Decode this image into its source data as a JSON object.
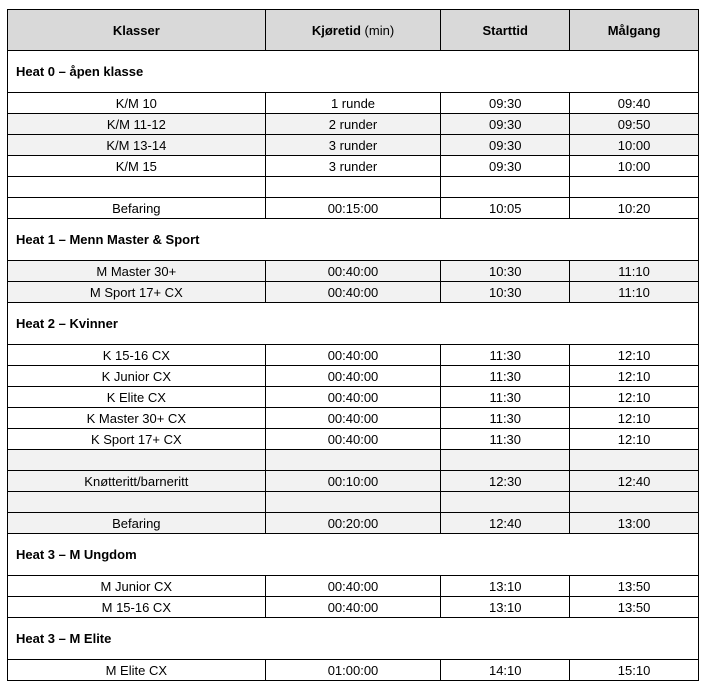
{
  "header": {
    "col1": "Klasser",
    "col2_bold": "Kjøretid",
    "col2_unit": " (min)",
    "col3": "Starttid",
    "col4": "Målgang"
  },
  "colors": {
    "header_bg": "#d9d9d9",
    "shaded_row_bg": "#f2f2f2"
  },
  "sections": [
    {
      "title": "Heat 0 – åpen klasse",
      "rows": [
        {
          "klasse": "K/M 10",
          "kjoretid": "1 runde",
          "start": "09:30",
          "mal": "09:40",
          "shaded": false
        },
        {
          "klasse": "K/M 11-12",
          "kjoretid": "2 runder",
          "start": "09:30",
          "mal": "09:50",
          "shaded": true
        },
        {
          "klasse": "K/M 13-14",
          "kjoretid": "3 runder",
          "start": "09:30",
          "mal": "10:00",
          "shaded": true
        },
        {
          "klasse": "K/M 15",
          "kjoretid": "3 runder",
          "start": "09:30",
          "mal": "10:00",
          "shaded": false
        },
        {
          "klasse": "",
          "kjoretid": "",
          "start": "",
          "mal": "",
          "shaded": false
        },
        {
          "klasse": "Befaring",
          "kjoretid": "00:15:00",
          "start": "10:05",
          "mal": "10:20",
          "shaded": false
        }
      ]
    },
    {
      "title": "Heat 1 – Menn Master & Sport",
      "rows": [
        {
          "klasse": "M Master 30+",
          "kjoretid": "00:40:00",
          "start": "10:30",
          "mal": "11:10",
          "shaded": true
        },
        {
          "klasse": "M Sport 17+ CX",
          "kjoretid": "00:40:00",
          "start": "10:30",
          "mal": "11:10",
          "shaded": true
        }
      ]
    },
    {
      "title": "Heat 2 – Kvinner",
      "rows": [
        {
          "klasse": "K 15-16 CX",
          "kjoretid": "00:40:00",
          "start": "11:30",
          "mal": "12:10",
          "shaded": false
        },
        {
          "klasse": "K Junior CX",
          "kjoretid": "00:40:00",
          "start": "11:30",
          "mal": "12:10",
          "shaded": false
        },
        {
          "klasse": "K Elite CX",
          "kjoretid": "00:40:00",
          "start": "11:30",
          "mal": "12:10",
          "shaded": false
        },
        {
          "klasse": "K Master 30+ CX",
          "kjoretid": "00:40:00",
          "start": "11:30",
          "mal": "12:10",
          "shaded": false
        },
        {
          "klasse": "K Sport 17+ CX",
          "kjoretid": "00:40:00",
          "start": "11:30",
          "mal": "12:10",
          "shaded": false
        },
        {
          "klasse": "",
          "kjoretid": "",
          "start": "",
          "mal": "",
          "shaded": true
        },
        {
          "klasse": "Knøtteritt/barneritt",
          "kjoretid": "00:10:00",
          "start": "12:30",
          "mal": "12:40",
          "shaded": true
        },
        {
          "klasse": "",
          "kjoretid": "",
          "start": "",
          "mal": "",
          "shaded": true
        },
        {
          "klasse": "Befaring",
          "kjoretid": "00:20:00",
          "start": "12:40",
          "mal": "13:00",
          "shaded": true
        }
      ]
    },
    {
      "title": "Heat 3 – M Ungdom",
      "rows": [
        {
          "klasse": "M Junior CX",
          "kjoretid": "00:40:00",
          "start": "13:10",
          "mal": "13:50",
          "shaded": false
        },
        {
          "klasse": "M 15-16 CX",
          "kjoretid": "00:40:00",
          "start": "13:10",
          "mal": "13:50",
          "shaded": false
        }
      ]
    },
    {
      "title": "Heat 3 – M Elite",
      "rows": [
        {
          "klasse": "M Elite CX",
          "kjoretid": "01:00:00",
          "start": "14:10",
          "mal": "15:10",
          "shaded": false
        }
      ]
    }
  ]
}
